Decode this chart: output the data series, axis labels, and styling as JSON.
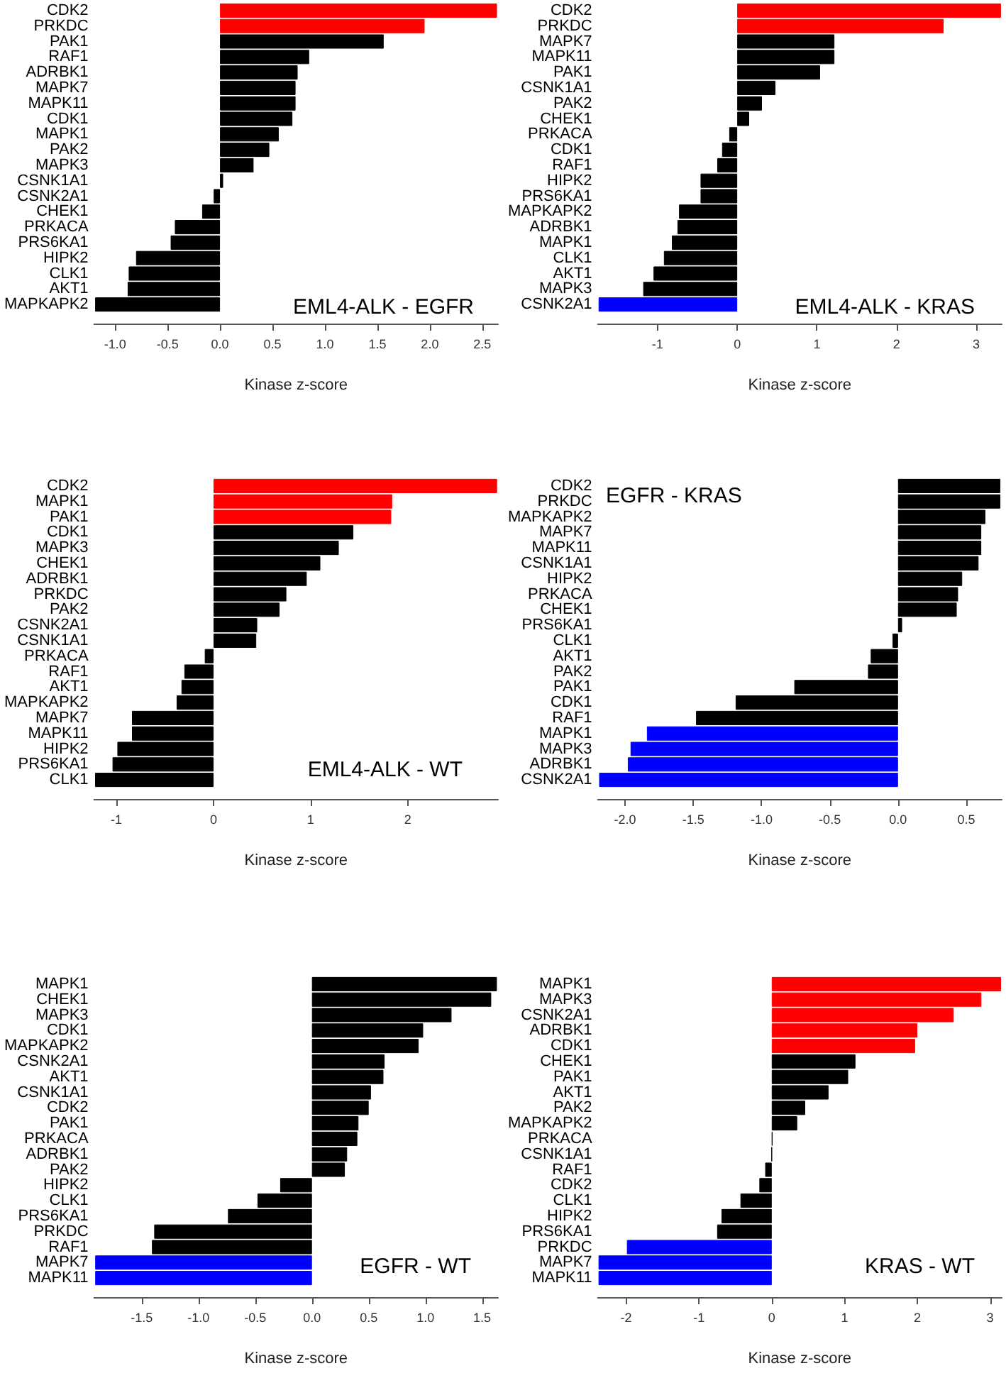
{
  "chart_data": [
    {
      "type": "bar",
      "orientation": "horizontal",
      "title": "EML4-ALK - EGFR",
      "xlabel": "Kinase z-score",
      "categories": [
        "CDK2",
        "PRKDC",
        "PAK1",
        "RAF1",
        "ADRBK1",
        "MAPK7",
        "MAPK11",
        "CDK1",
        "MAPK1",
        "PAK2",
        "MAPK3",
        "CSNK1A1",
        "CSNK2A1",
        "CHEK1",
        "PRKACA",
        "PRS6KA1",
        "HIPK2",
        "CLK1",
        "AKT1",
        "MAPKAPK2"
      ],
      "values": [
        2.64,
        1.95,
        1.56,
        0.85,
        0.74,
        0.72,
        0.72,
        0.69,
        0.56,
        0.47,
        0.32,
        0.03,
        -0.06,
        -0.17,
        -0.43,
        -0.47,
        -0.8,
        -0.87,
        -0.88,
        -1.19
      ],
      "colors": [
        "#ff0000",
        "#ff0000",
        "#000000",
        "#000000",
        "#000000",
        "#000000",
        "#000000",
        "#000000",
        "#000000",
        "#000000",
        "#000000",
        "#000000",
        "#000000",
        "#000000",
        "#000000",
        "#000000",
        "#000000",
        "#000000",
        "#000000",
        "#000000"
      ],
      "xlim": [
        -1.2,
        2.65
      ],
      "xticks": [
        {
          "value": -1,
          "label": "-1.0"
        },
        {
          "value": -0.5,
          "label": "-0.5"
        },
        {
          "value": 0,
          "label": "0.0"
        },
        {
          "value": 0.5,
          "label": "0.5"
        },
        {
          "value": 1,
          "label": "1.0"
        },
        {
          "value": 1.5,
          "label": "1.5"
        },
        {
          "value": 2,
          "label": "2.0"
        },
        {
          "value": 2.5,
          "label": "2.5"
        }
      ]
    },
    {
      "type": "bar",
      "orientation": "horizontal",
      "title": "EML4-ALK - KRAS",
      "xlabel": "Kinase z-score",
      "categories": [
        "CDK2",
        "PRKDC",
        "MAPK7",
        "MAPK11",
        "PAK1",
        "CSNK1A1",
        "PAK2",
        "CHEK1",
        "PRKACA",
        "CDK1",
        "RAF1",
        "HIPK2",
        "PRS6KA1",
        "MAPKAPK2",
        "ADRBK1",
        "MAPK1",
        "CLK1",
        "AKT1",
        "MAPK3",
        "CSNK2A1"
      ],
      "values": [
        3.31,
        2.59,
        1.22,
        1.22,
        1.04,
        0.48,
        0.31,
        0.15,
        -0.1,
        -0.19,
        -0.25,
        -0.46,
        -0.46,
        -0.73,
        -0.75,
        -0.82,
        -0.92,
        -1.05,
        -1.18,
        -1.74
      ],
      "colors": [
        "#ff0000",
        "#ff0000",
        "#000000",
        "#000000",
        "#000000",
        "#000000",
        "#000000",
        "#000000",
        "#000000",
        "#000000",
        "#000000",
        "#000000",
        "#000000",
        "#000000",
        "#000000",
        "#000000",
        "#000000",
        "#000000",
        "#000000",
        "#0000ff"
      ],
      "xlim": [
        -1.75,
        3.32
      ],
      "xticks": [
        -1,
        0,
        1,
        2,
        3
      ]
    },
    {
      "type": "bar",
      "orientation": "horizontal",
      "title": "EML4-ALK - WT",
      "xlabel": "Kinase z-score",
      "categories": [
        "CDK2",
        "MAPK1",
        "PAK1",
        "CDK1",
        "MAPK3",
        "CHEK1",
        "ADRBK1",
        "PRKDC",
        "PAK2",
        "CSNK2A1",
        "CSNK1A1",
        "PRKACA",
        "RAF1",
        "AKT1",
        "MAPKAPK2",
        "MAPK7",
        "MAPK11",
        "HIPK2",
        "PRS6KA1",
        "CLK1"
      ],
      "values": [
        2.92,
        1.84,
        1.83,
        1.44,
        1.29,
        1.1,
        0.96,
        0.75,
        0.68,
        0.45,
        0.44,
        -0.09,
        -0.3,
        -0.33,
        -0.38,
        -0.84,
        -0.84,
        -0.99,
        -1.04,
        -1.22
      ],
      "colors": [
        "#ff0000",
        "#ff0000",
        "#ff0000",
        "#000000",
        "#000000",
        "#000000",
        "#000000",
        "#000000",
        "#000000",
        "#000000",
        "#000000",
        "#000000",
        "#000000",
        "#000000",
        "#000000",
        "#000000",
        "#000000",
        "#000000",
        "#000000",
        "#000000"
      ],
      "xlim": [
        -1.23,
        2.93
      ],
      "xticks": [
        -1,
        0,
        1,
        2
      ]
    },
    {
      "type": "bar",
      "orientation": "horizontal",
      "title": "EGFR - KRAS",
      "xlabel": "Kinase z-score",
      "categories": [
        "CDK2",
        "PRKDC",
        "MAPKAPK2",
        "MAPK7",
        "MAPK11",
        "CSNK1A1",
        "HIPK2",
        "PRKACA",
        "CHEK1",
        "PRS6KA1",
        "CLK1",
        "AKT1",
        "PAK2",
        "PAK1",
        "CDK1",
        "RAF1",
        "MAPK1",
        "MAPK3",
        "ADRBK1",
        "CSNK2A1"
      ],
      "values": [
        0.75,
        0.75,
        0.64,
        0.61,
        0.61,
        0.59,
        0.47,
        0.44,
        0.43,
        0.03,
        -0.04,
        -0.2,
        -0.22,
        -0.76,
        -1.19,
        -1.48,
        -1.84,
        -1.96,
        -1.98,
        -2.19
      ],
      "colors": [
        "#000000",
        "#000000",
        "#000000",
        "#000000",
        "#000000",
        "#000000",
        "#000000",
        "#000000",
        "#000000",
        "#000000",
        "#000000",
        "#000000",
        "#000000",
        "#000000",
        "#000000",
        "#000000",
        "#0000ff",
        "#0000ff",
        "#0000ff",
        "#0000ff"
      ],
      "xlim": [
        -2.2,
        0.76
      ],
      "xticks": [
        {
          "value": -2,
          "label": "-2.0"
        },
        {
          "value": -1.5,
          "label": "-1.5"
        },
        {
          "value": -1,
          "label": "-1.0"
        },
        {
          "value": -0.5,
          "label": "-0.5"
        },
        {
          "value": 0,
          "label": "0.0"
        },
        {
          "value": 0.5,
          "label": "0.5"
        }
      ]
    },
    {
      "type": "bar",
      "orientation": "horizontal",
      "title": "EGFR - WT",
      "xlabel": "Kinase z-score",
      "categories": [
        "MAPK1",
        "CHEK1",
        "MAPK3",
        "CDK1",
        "MAPKAPK2",
        "CSNK2A1",
        "AKT1",
        "CSNK1A1",
        "CDK2",
        "PAK1",
        "PRKACA",
        "ADRBK1",
        "PAK2",
        "HIPK2",
        "CLK1",
        "PRS6KA1",
        "PRKDC",
        "RAF1",
        "MAPK7",
        "MAPK11"
      ],
      "values": [
        1.63,
        1.58,
        1.23,
        0.98,
        0.94,
        0.64,
        0.63,
        0.52,
        0.5,
        0.41,
        0.4,
        0.31,
        0.29,
        -0.28,
        -0.48,
        -0.74,
        -1.39,
        -1.41,
        -1.91,
        -1.91
      ],
      "colors": [
        "#000000",
        "#000000",
        "#000000",
        "#000000",
        "#000000",
        "#000000",
        "#000000",
        "#000000",
        "#000000",
        "#000000",
        "#000000",
        "#000000",
        "#000000",
        "#000000",
        "#000000",
        "#000000",
        "#000000",
        "#000000",
        "#0000ff",
        "#0000ff"
      ],
      "xlim": [
        -1.92,
        1.64
      ],
      "xticks": [
        {
          "value": -1.5,
          "label": "-1.5"
        },
        {
          "value": -1,
          "label": "-1.0"
        },
        {
          "value": -0.5,
          "label": "-0.5"
        },
        {
          "value": 0,
          "label": "0.0"
        },
        {
          "value": 0.5,
          "label": "0.5"
        },
        {
          "value": 1,
          "label": "1.0"
        },
        {
          "value": 1.5,
          "label": "1.5"
        }
      ]
    },
    {
      "type": "bar",
      "orientation": "horizontal",
      "title": "KRAS - WT",
      "xlabel": "Kinase z-score",
      "categories": [
        "MAPK1",
        "MAPK3",
        "CSNK2A1",
        "ADRBK1",
        "CDK1",
        "CHEK1",
        "PAK1",
        "AKT1",
        "PAK2",
        "MAPKAPK2",
        "PRKACA",
        "CSNK1A1",
        "RAF1",
        "CDK2",
        "CLK1",
        "HIPK2",
        "PRS6KA1",
        "PRKDC",
        "MAPK7",
        "MAPK11"
      ],
      "values": [
        3.15,
        2.88,
        2.5,
        2,
        1.97,
        1.15,
        1.05,
        0.78,
        0.46,
        0.35,
        0.01,
        0,
        -0.09,
        -0.17,
        -0.43,
        -0.69,
        -0.75,
        -1.99,
        -2.38,
        -2.38
      ],
      "colors": [
        "#ff0000",
        "#ff0000",
        "#ff0000",
        "#ff0000",
        "#ff0000",
        "#000000",
        "#000000",
        "#000000",
        "#000000",
        "#000000",
        "#000000",
        "#000000",
        "#000000",
        "#000000",
        "#000000",
        "#000000",
        "#000000",
        "#0000ff",
        "#0000ff",
        "#0000ff"
      ],
      "xlim": [
        -2.39,
        3.16
      ],
      "xticks": [
        -2,
        -1,
        0,
        1,
        2,
        3
      ]
    }
  ]
}
